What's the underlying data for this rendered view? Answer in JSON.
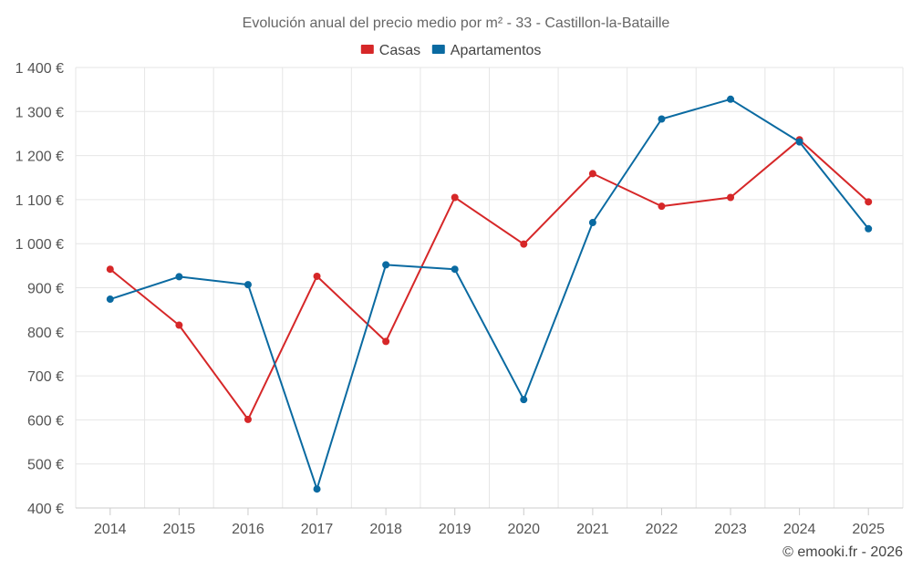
{
  "chart_data": {
    "type": "line",
    "title": "Evolución anual del precio medio por m² - 33 - Castillon-la-Bataille",
    "categories": [
      "2014",
      "2015",
      "2016",
      "2017",
      "2018",
      "2019",
      "2020",
      "2021",
      "2022",
      "2023",
      "2024",
      "2025"
    ],
    "series": [
      {
        "name": "Casas",
        "color": "#d62728",
        "values": [
          942,
          815,
          601,
          926,
          778,
          1105,
          999,
          1159,
          1085,
          1105,
          1236,
          1095
        ]
      },
      {
        "name": "Apartamentos",
        "color": "#0a6aa1",
        "values": [
          874,
          925,
          907,
          443,
          952,
          942,
          646,
          1048,
          1283,
          1328,
          1231,
          1034
        ]
      }
    ],
    "ylim": [
      400,
      1400
    ],
    "yticks": [
      400,
      500,
      600,
      700,
      800,
      900,
      1000,
      1100,
      1200,
      1300,
      1400
    ],
    "ytick_labels": [
      "400 €",
      "500 €",
      "600 €",
      "700 €",
      "800 €",
      "900 €",
      "1 000 €",
      "1 100 €",
      "1 200 €",
      "1 300 €",
      "1 400 €"
    ],
    "xlabel": "",
    "ylabel": "",
    "grid": true,
    "legend": "top-center"
  },
  "credit": "© emooki.fr - 2026"
}
